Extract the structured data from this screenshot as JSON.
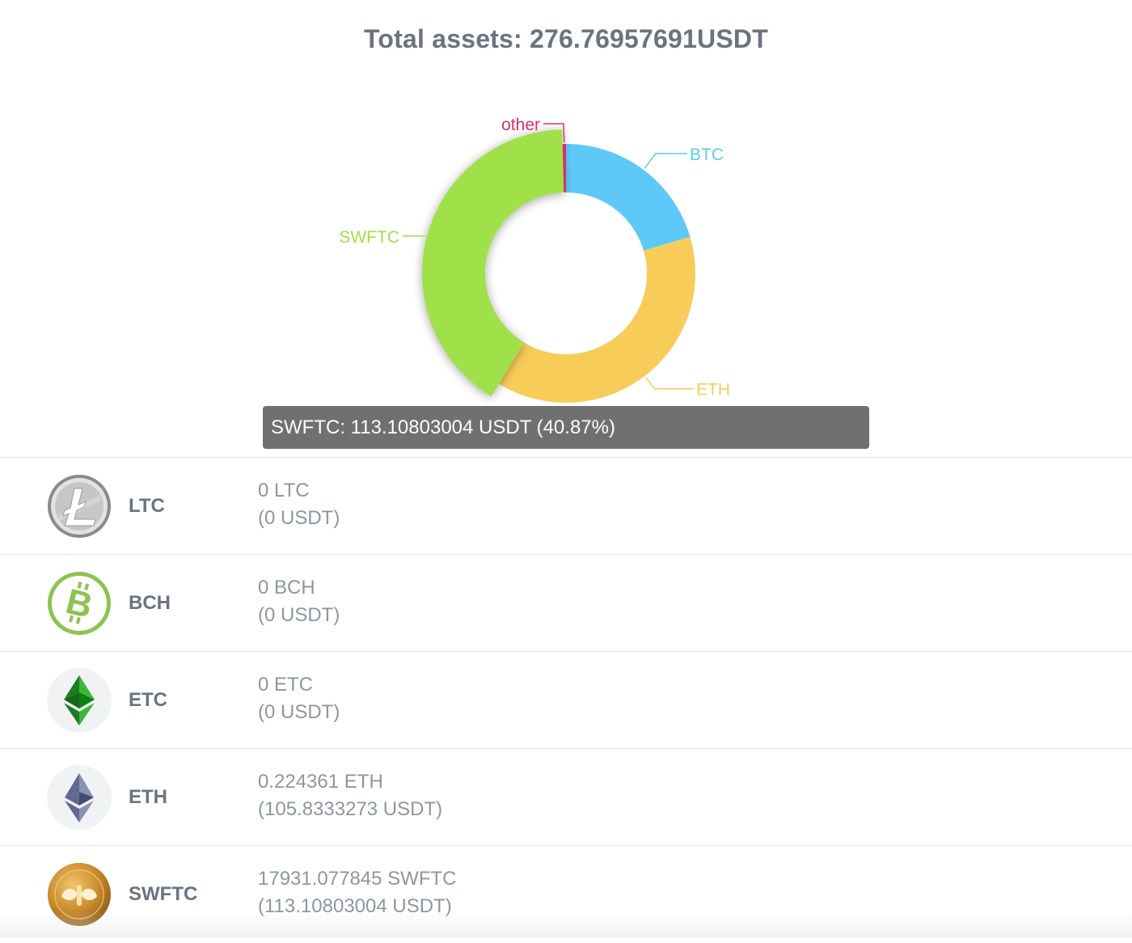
{
  "header": {
    "title": "Total assets: 276.76957691USDT"
  },
  "chart_data": {
    "type": "pie",
    "variant": "donut",
    "categories": [
      "BTC",
      "ETH",
      "SWFTC",
      "other"
    ],
    "values": [
      56.6,
      105.8333273,
      113.10803004,
      1.2
    ],
    "colors": [
      "#5ec9f8",
      "#f8cc58",
      "#a0e048",
      "#d8306a"
    ],
    "highlighted": "SWFTC",
    "tooltip": "SWFTC: 113.10803004 USDT (40.87%)"
  },
  "assets": [
    {
      "symbol": "LTC",
      "amount": "0 LTC",
      "usdt": "(0 USDT)",
      "icon": "litecoin-icon"
    },
    {
      "symbol": "BCH",
      "amount": "0 BCH",
      "usdt": "(0 USDT)",
      "icon": "bitcoin-cash-icon"
    },
    {
      "symbol": "ETC",
      "amount": "0 ETC",
      "usdt": "(0 USDT)",
      "icon": "ethereum-classic-icon"
    },
    {
      "symbol": "ETH",
      "amount": "0.224361 ETH",
      "usdt": "(105.8333273 USDT)",
      "icon": "ethereum-icon"
    },
    {
      "symbol": "SWFTC",
      "amount": "17931.077845 SWFTC",
      "usdt": "(113.10803004 USDT)",
      "icon": "swftc-coin-icon"
    }
  ]
}
